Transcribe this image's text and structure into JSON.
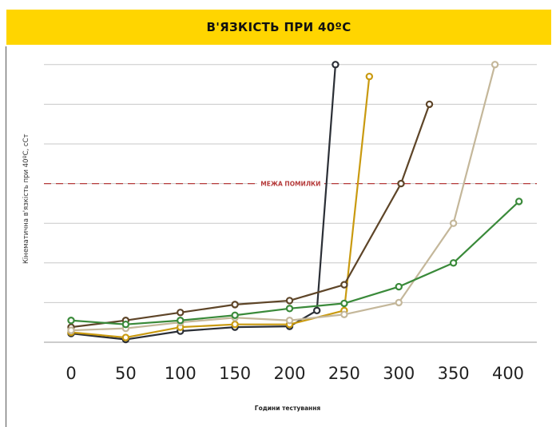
{
  "chart_data": {
    "type": "line",
    "title": "В'ЯЗКІСТЬ ПРИ 40ºC",
    "xlabel": "Години тестування",
    "ylabel": "Кінематична в'язкість при 40ºC, сСт",
    "x_ticks": [
      0,
      50,
      100,
      150,
      200,
      250,
      300,
      350,
      400
    ],
    "xlim": [
      0,
      410
    ],
    "y_grid_lines": 8,
    "error_limit_label": "МЕЖА ПОМИЛКИ",
    "error_limit_color": "#b53a3a",
    "background_band_color": "#ffd500",
    "series": [
      {
        "color": "#2b2f36",
        "points": [
          [
            0,
            0.22
          ],
          [
            50,
            0.07
          ],
          [
            100,
            0.28
          ],
          [
            150,
            0.38
          ],
          [
            200,
            0.4
          ],
          [
            225,
            0.8
          ],
          [
            242,
            7.0
          ]
        ]
      },
      {
        "color": "#c99a10",
        "points": [
          [
            0,
            0.25
          ],
          [
            50,
            0.12
          ],
          [
            100,
            0.38
          ],
          [
            150,
            0.45
          ],
          [
            200,
            0.45
          ],
          [
            250,
            0.8
          ],
          [
            273,
            6.7
          ]
        ]
      },
      {
        "color": "#5e4528",
        "points": [
          [
            0,
            0.38
          ],
          [
            50,
            0.55
          ],
          [
            100,
            0.75
          ],
          [
            150,
            0.95
          ],
          [
            200,
            1.05
          ],
          [
            250,
            1.45
          ],
          [
            302,
            4.0
          ],
          [
            328,
            6.0
          ]
        ]
      },
      {
        "color": "#c4b79a",
        "points": [
          [
            0,
            0.3
          ],
          [
            50,
            0.35
          ],
          [
            100,
            0.5
          ],
          [
            150,
            0.62
          ],
          [
            200,
            0.55
          ],
          [
            250,
            0.7
          ],
          [
            300,
            1.0
          ],
          [
            350,
            3.0
          ],
          [
            388,
            7.0
          ]
        ]
      },
      {
        "color": "#3a8a3a",
        "points": [
          [
            0,
            0.55
          ],
          [
            50,
            0.45
          ],
          [
            100,
            0.55
          ],
          [
            150,
            0.68
          ],
          [
            200,
            0.85
          ],
          [
            250,
            0.98
          ],
          [
            300,
            1.4
          ],
          [
            350,
            2.0
          ],
          [
            410,
            3.55
          ]
        ]
      }
    ]
  }
}
